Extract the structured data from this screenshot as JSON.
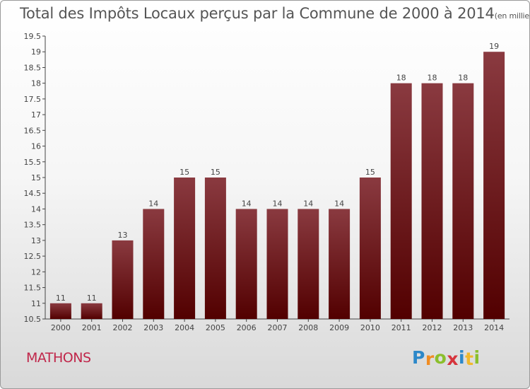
{
  "header": {
    "title": "Total des Impôts Locaux perçus par la Commune de 2000 à 2014",
    "unit": "(en milliers d'€)"
  },
  "commune": "MATHONS",
  "logo": {
    "letters": [
      "P",
      "r",
      "o",
      "x",
      "i",
      "t",
      "i"
    ],
    "colors": [
      "#2c88c9",
      "#f08c22",
      "#8bbf2c",
      "#d6343c",
      "#2c88c9",
      "#f0b82c",
      "#8bbf2c"
    ]
  },
  "colors": {
    "bar_top": "#8a3a40",
    "bar_bottom": "#520000",
    "commune": "#c0264a"
  },
  "chart_data": {
    "type": "bar",
    "title": "Total des Impôts Locaux perçus par la Commune de 2000 à 2014",
    "xlabel": "",
    "ylabel": "",
    "categories": [
      "2000",
      "2001",
      "2002",
      "2003",
      "2004",
      "2005",
      "2006",
      "2007",
      "2008",
      "2009",
      "2010",
      "2011",
      "2012",
      "2013",
      "2014"
    ],
    "values": [
      11,
      11,
      13,
      14,
      15,
      15,
      14,
      14,
      14,
      14,
      15,
      18,
      18,
      18,
      19
    ],
    "ylim": [
      10.5,
      19.5
    ],
    "yticks": [
      "10.5",
      "11",
      "11.5",
      "12",
      "12.5",
      "13",
      "13.5",
      "14",
      "14.5",
      "15",
      "15.5",
      "16",
      "16.5",
      "17",
      "17.5",
      "18",
      "18.5",
      "19",
      "19.5"
    ],
    "grid": false,
    "legend": "none"
  }
}
